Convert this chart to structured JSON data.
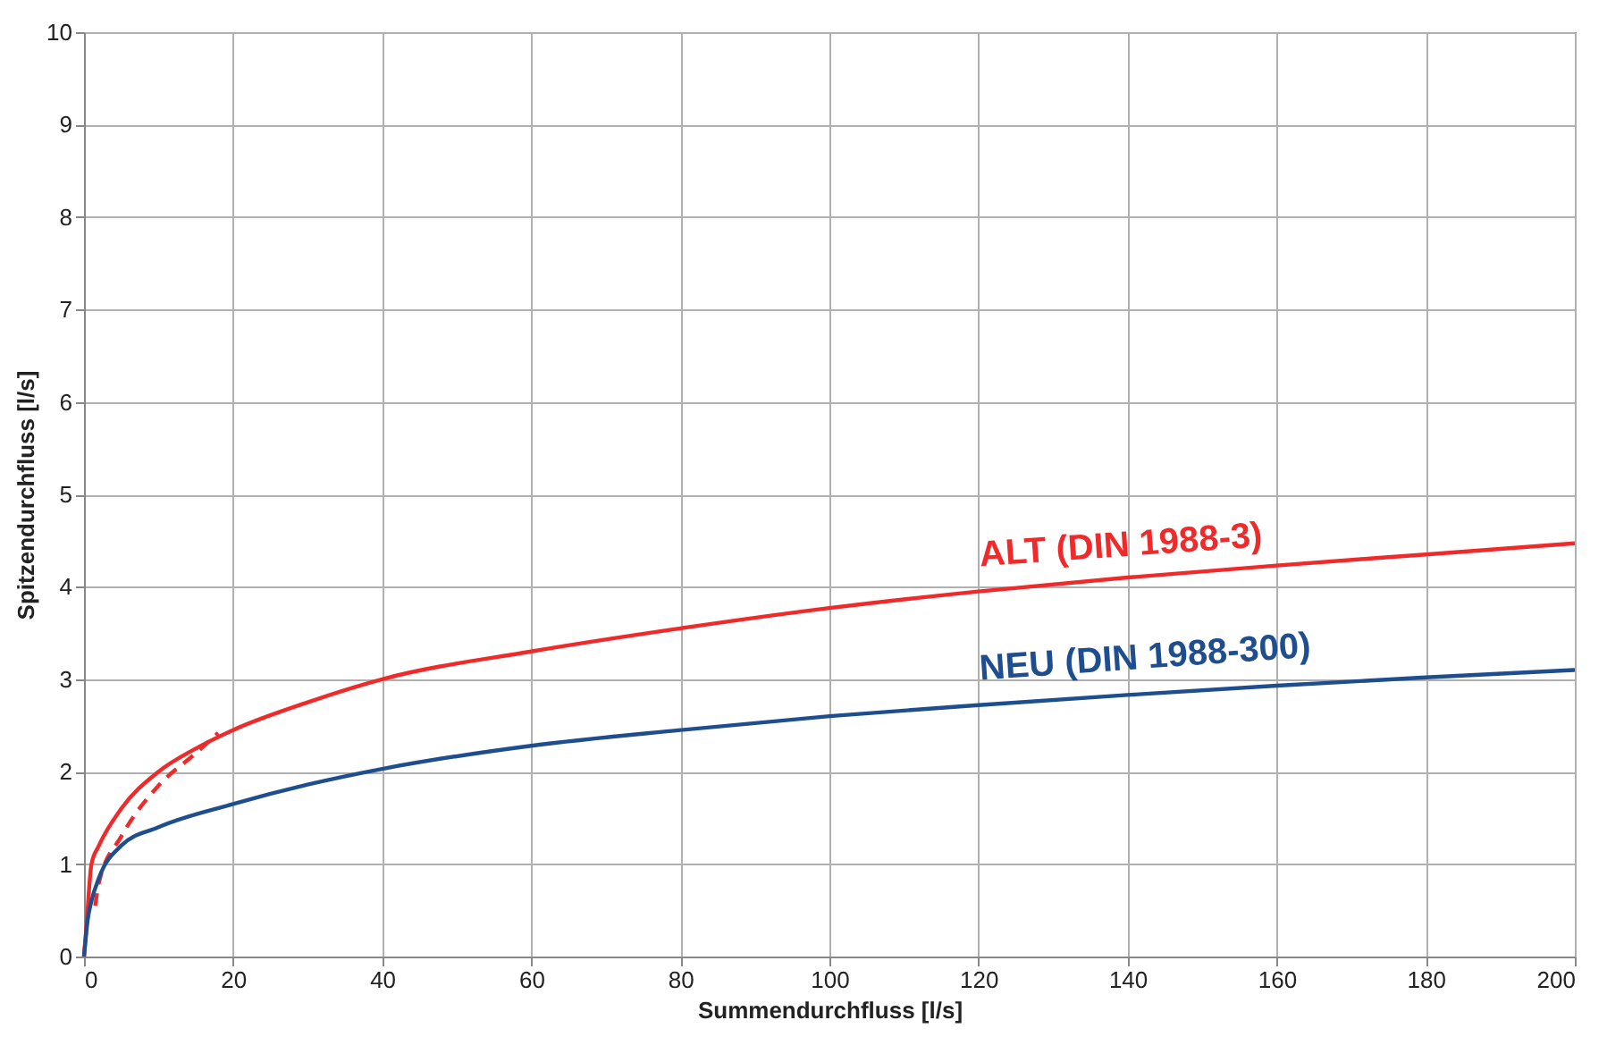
{
  "chart_data": {
    "type": "line",
    "xlabel": "Summendurchfluss [l/s]",
    "ylabel": "Spitzendurchfluss [l/s]",
    "xlim": [
      0,
      200
    ],
    "xticks": [
      0,
      20,
      40,
      60,
      80,
      100,
      120,
      140,
      160,
      180,
      200
    ],
    "ylim": [
      0,
      10
    ],
    "yticks": [
      0,
      1,
      2,
      3,
      4,
      5,
      6,
      7,
      8,
      9,
      10
    ],
    "grid": true,
    "marker": "none",
    "series": [
      {
        "name": "ALT (DIN 1988-3)",
        "color": "#ee2a2a",
        "line_style": "solid",
        "x": [
          0,
          0.3,
          1,
          2,
          5,
          10,
          15,
          20,
          30,
          40,
          60,
          80,
          100,
          120,
          140,
          160,
          180,
          200
        ],
        "values": [
          0,
          0.3,
          1.0,
          1.2,
          1.6,
          2.0,
          2.25,
          2.45,
          2.75,
          3.0,
          3.3,
          3.55,
          3.77,
          3.95,
          4.1,
          4.23,
          4.35,
          4.47
        ]
      },
      {
        "color": "#ee2a2a",
        "line_style": "dashed",
        "x": [
          1.5,
          2,
          5,
          10,
          15,
          18
        ],
        "values": [
          0.55,
          0.8,
          1.3,
          1.85,
          2.2,
          2.42
        ]
      },
      {
        "name": "NEU (DIN 1988-300)",
        "color": "#1f4e8f",
        "line_style": "solid",
        "x": [
          0,
          0.5,
          1,
          2,
          5,
          10,
          20,
          30,
          40,
          60,
          80,
          100,
          120,
          140,
          160,
          180,
          200
        ],
        "values": [
          0,
          0.4,
          0.6,
          0.85,
          1.2,
          1.4,
          1.65,
          1.86,
          2.03,
          2.28,
          2.45,
          2.6,
          2.72,
          2.83,
          2.93,
          3.02,
          3.1
        ]
      }
    ]
  }
}
